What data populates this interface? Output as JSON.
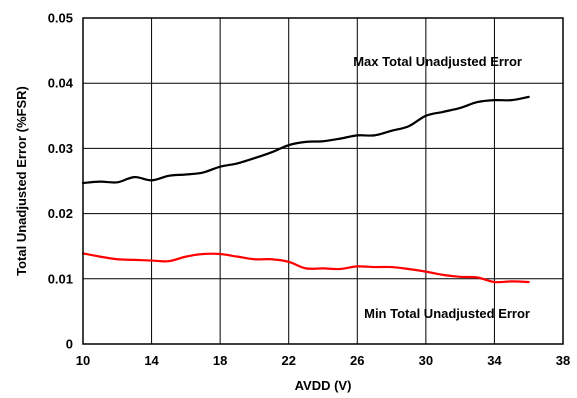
{
  "chart_data": {
    "type": "line",
    "title": "",
    "xlabel": "AVDD (V)",
    "ylabel": "Total Unadjusted Error (%FSR)",
    "xlim": [
      10,
      38
    ],
    "ylim": [
      0,
      0.05
    ],
    "x_ticks": [
      10,
      14,
      18,
      22,
      26,
      30,
      34,
      38
    ],
    "y_ticks": [
      0,
      0.01,
      0.02,
      0.03,
      0.04,
      0.05
    ],
    "x_tick_labels": [
      "10",
      "14",
      "18",
      "22",
      "26",
      "30",
      "34",
      "38"
    ],
    "y_tick_labels": [
      "0",
      "0.01",
      "0.02",
      "0.03",
      "0.04",
      "0.05"
    ],
    "grid": true,
    "legend": "none",
    "series": [
      {
        "name": "Max Total Unadjusted Error",
        "color": "#000000",
        "x": [
          10,
          11,
          12,
          13,
          14,
          15,
          16,
          17,
          18,
          19,
          20,
          21,
          22,
          23,
          24,
          25,
          26,
          27,
          28,
          29,
          30,
          31,
          32,
          33,
          34,
          35,
          36
        ],
        "y": [
          0.0247,
          0.0249,
          0.0248,
          0.0256,
          0.0251,
          0.0258,
          0.026,
          0.0263,
          0.0272,
          0.0277,
          0.0285,
          0.0294,
          0.0305,
          0.031,
          0.0311,
          0.0315,
          0.032,
          0.032,
          0.0327,
          0.0334,
          0.035,
          0.0356,
          0.0362,
          0.0371,
          0.0374,
          0.0374,
          0.0379
        ]
      },
      {
        "name": "Min Total Unadjusted Error",
        "color": "#ff0000",
        "x": [
          10,
          11,
          12,
          13,
          14,
          15,
          16,
          17,
          18,
          19,
          20,
          21,
          22,
          23,
          24,
          25,
          26,
          27,
          28,
          29,
          30,
          31,
          32,
          33,
          34,
          35,
          36
        ],
        "y": [
          0.0139,
          0.0134,
          0.013,
          0.0129,
          0.0128,
          0.0127,
          0.0134,
          0.0138,
          0.0138,
          0.0134,
          0.013,
          0.013,
          0.0126,
          0.0116,
          0.0116,
          0.0115,
          0.0119,
          0.0118,
          0.0118,
          0.0115,
          0.0111,
          0.0106,
          0.0103,
          0.0102,
          0.0095,
          0.0096,
          0.0095
        ]
      }
    ],
    "annotations": [
      "Max Total Unadjusted Error",
      "Min Total Unadjusted Error"
    ]
  }
}
